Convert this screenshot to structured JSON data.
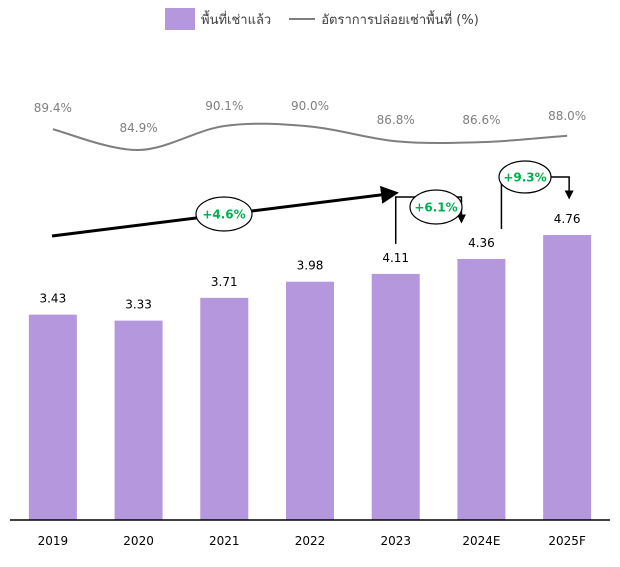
{
  "chart_data": {
    "type": "bar",
    "categories": [
      "2019",
      "2020",
      "2021",
      "2022",
      "2023",
      "2024E",
      "2025F"
    ],
    "series": [
      {
        "name": "พื้นที่เช่าแล้ว",
        "type": "bar",
        "values": [
          3.43,
          3.33,
          3.71,
          3.98,
          4.11,
          4.36,
          4.76
        ]
      },
      {
        "name": "อัตราการปล่อยเช่าพื้นที่ (%)",
        "type": "line",
        "values": [
          89.4,
          84.9,
          90.1,
          90.0,
          86.8,
          86.6,
          88.0
        ]
      }
    ],
    "bar_labels": [
      "3.43",
      "3.33",
      "3.71",
      "3.98",
      "4.11",
      "4.36",
      "4.76"
    ],
    "line_labels": [
      "89.4%",
      "84.9%",
      "90.1%",
      "90.0%",
      "86.8%",
      "86.6%",
      "88.0%"
    ],
    "annotations": [
      "+4.6%",
      "+6.1%",
      "+9.3%"
    ],
    "ylim": [
      0,
      5.5
    ],
    "colors": {
      "bar": "#b497dd",
      "line": "#7f7f7f",
      "growth": "#00b050",
      "arrow": "#000000",
      "axis": "#000000",
      "text": "#000000",
      "line_label": "#7f7f7f"
    },
    "legend_position": "top"
  }
}
